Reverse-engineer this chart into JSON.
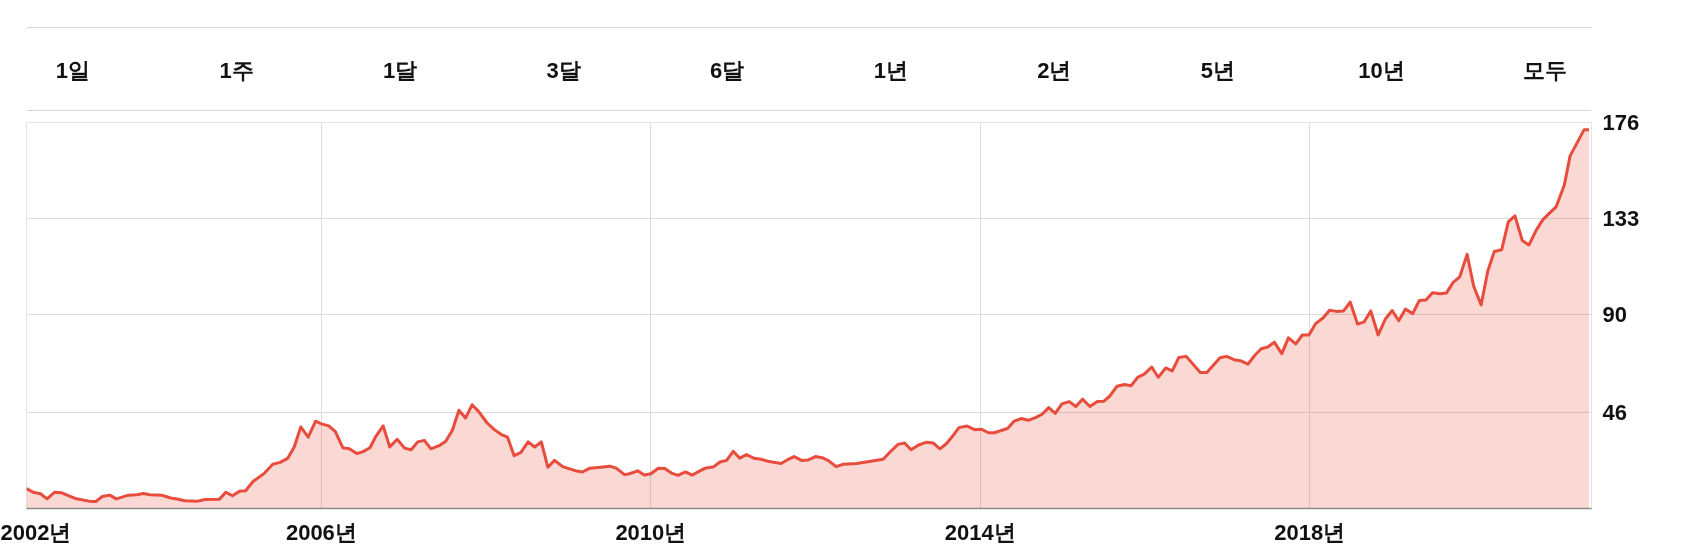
{
  "chart_data": {
    "type": "area",
    "annotations": [
      "1일",
      "1주",
      "1달",
      "3달",
      "6달",
      "1년",
      "2년",
      "5년",
      "10년",
      "모두"
    ],
    "x": [
      2002.42,
      2002.5,
      2002.59,
      2002.67,
      2002.76,
      2002.84,
      2003.01,
      2003.18,
      2003.26,
      2003.34,
      2003.43,
      2003.51,
      2003.66,
      2003.76,
      2003.84,
      2003.92,
      2004.06,
      2004.17,
      2004.25,
      2004.34,
      2004.5,
      2004.59,
      2004.76,
      2004.84,
      2004.92,
      2005.01,
      2005.08,
      2005.17,
      2005.31,
      2005.41,
      2005.5,
      2005.59,
      2005.67,
      2005.75,
      2005.84,
      2005.93,
      2006.0,
      2006.09,
      2006.17,
      2006.26,
      2006.34,
      2006.43,
      2006.5,
      2006.59,
      2006.66,
      2006.75,
      2006.83,
      2006.92,
      2007.01,
      2007.09,
      2007.17,
      2007.25,
      2007.33,
      2007.43,
      2007.51,
      2007.59,
      2007.67,
      2007.75,
      2007.83,
      2007.91,
      2008.01,
      2008.1,
      2008.18,
      2008.26,
      2008.34,
      2008.42,
      2008.51,
      2008.59,
      2008.67,
      2008.75,
      2008.83,
      2008.93,
      2009.1,
      2009.17,
      2009.26,
      2009.39,
      2009.5,
      2009.58,
      2009.68,
      2009.74,
      2009.84,
      2009.92,
      2010.0,
      2010.09,
      2010.17,
      2010.25,
      2010.33,
      2010.42,
      2010.5,
      2010.66,
      2010.76,
      2010.84,
      2010.92,
      2011.0,
      2011.08,
      2011.16,
      2011.25,
      2011.34,
      2011.42,
      2011.58,
      2011.66,
      2011.74,
      2011.83,
      2011.91,
      2012.0,
      2012.08,
      2012.16,
      2012.25,
      2012.34,
      2012.5,
      2012.82,
      2012.91,
      2013.0,
      2013.08,
      2013.16,
      2013.25,
      2013.34,
      2013.43,
      2013.51,
      2013.59,
      2013.66,
      2013.74,
      2013.84,
      2013.93,
      2014.01,
      2014.1,
      2014.17,
      2014.33,
      2014.41,
      2014.5,
      2014.58,
      2014.67,
      2014.75,
      2014.83,
      2014.91,
      2014.99,
      2015.08,
      2015.16,
      2015.24,
      2015.33,
      2015.42,
      2015.5,
      2015.57,
      2015.66,
      2015.75,
      2015.83,
      2015.91,
      2015.99,
      2016.08,
      2016.16,
      2016.25,
      2016.33,
      2016.41,
      2016.5,
      2016.67,
      2016.75,
      2016.91,
      2016.99,
      2017.08,
      2017.17,
      2017.25,
      2017.33,
      2017.41,
      2017.49,
      2017.57,
      2017.66,
      2017.74,
      2017.83,
      2017.91,
      2017.99,
      2018.07,
      2018.16,
      2018.24,
      2018.32,
      2018.41,
      2018.49,
      2018.58,
      2018.66,
      2018.74,
      2018.83,
      2018.92,
      2019.0,
      2019.08,
      2019.16,
      2019.25,
      2019.33,
      2019.41,
      2019.49,
      2019.58,
      2019.66,
      2019.74,
      2019.82,
      2019.91,
      2019.99,
      2020.08,
      2020.16,
      2020.24,
      2020.33,
      2020.41,
      2020.49,
      2020.58,
      2020.66,
      2020.75,
      2020.83,
      2020.91,
      2020.99,
      2021.09,
      2021.16,
      2021.25,
      2021.33,
      2021.39
    ],
    "series": [
      {
        "color": "#e84c3d",
        "values": [
          11.7,
          10.0,
          9.3,
          7.0,
          10.0,
          9.8,
          7.2,
          6.0,
          5.8,
          8.1,
          8.7,
          7.0,
          8.7,
          8.9,
          9.4,
          8.9,
          8.7,
          7.4,
          7.0,
          6.2,
          6.0,
          6.7,
          6.8,
          10.0,
          8.4,
          10.5,
          10.7,
          14.8,
          18.6,
          22.6,
          23.4,
          25.2,
          30.3,
          39.3,
          34.7,
          41.9,
          40.7,
          39.8,
          37.2,
          30.0,
          29.5,
          27.4,
          28.1,
          30.0,
          35.0,
          39.8,
          30.3,
          33.8,
          29.8,
          29.1,
          32.6,
          33.3,
          29.5,
          30.9,
          32.9,
          37.8,
          46.8,
          43.3,
          49.3,
          46.2,
          41.2,
          38.1,
          36.0,
          34.7,
          26.4,
          27.8,
          32.6,
          30.3,
          32.6,
          21.2,
          24.3,
          21.5,
          19.5,
          19.1,
          20.8,
          21.2,
          21.7,
          20.8,
          17.9,
          18.3,
          19.6,
          17.7,
          18.3,
          20.8,
          20.7,
          18.6,
          17.6,
          19.1,
          17.7,
          20.8,
          21.4,
          23.6,
          24.3,
          28.4,
          25.3,
          26.9,
          25.3,
          24.8,
          23.9,
          22.9,
          24.6,
          26.0,
          24.3,
          24.5,
          26.0,
          25.5,
          24.1,
          21.5,
          22.6,
          22.9,
          24.8,
          28.3,
          31.5,
          32.1,
          29.1,
          31.2,
          32.4,
          32.1,
          29.5,
          31.9,
          35.0,
          39.0,
          39.7,
          38.1,
          38.3,
          36.7,
          36.7,
          38.6,
          41.9,
          43.1,
          42.3,
          43.5,
          45.0,
          48.0,
          45.4,
          49.7,
          50.7,
          48.5,
          51.8,
          48.5,
          50.7,
          50.9,
          53.1,
          57.6,
          58.4,
          57.8,
          61.6,
          63.0,
          66.2,
          61.6,
          65.8,
          64.5,
          70.5,
          71.0,
          63.8,
          63.8,
          70.4,
          71.0,
          69.5,
          68.9,
          67.5,
          71.4,
          74.4,
          75.2,
          77.4,
          72.2,
          79.3,
          76.6,
          80.6,
          80.6,
          85.7,
          88.2,
          91.7,
          91.2,
          91.4,
          95.4,
          85.5,
          86.5,
          91.4,
          80.6,
          87.9,
          91.6,
          87.0,
          92.2,
          90.2,
          96.1,
          96.3,
          99.6,
          99.1,
          99.5,
          104.2,
          106.7,
          116.8,
          102.5,
          94.1,
          109.2,
          118.1,
          118.9,
          131.4,
          134.1,
          123.0,
          121.0,
          127.7,
          132.4,
          135.3,
          138.1,
          147.9,
          161.0,
          167.2,
          172.8,
          172.8
        ]
      }
    ],
    "xlim": [
      2002.42,
      2021.42
    ],
    "xticks": [
      {
        "value": 2002.42,
        "label": "2002년"
      },
      {
        "value": 2006,
        "label": "2006년"
      },
      {
        "value": 2010,
        "label": "2010년"
      },
      {
        "value": 2014,
        "label": "2014년"
      },
      {
        "value": 2018,
        "label": "2018년"
      }
    ],
    "ylim": [
      2.7,
      176
    ],
    "yticks": [
      46,
      90,
      133,
      176
    ],
    "grid": true
  }
}
